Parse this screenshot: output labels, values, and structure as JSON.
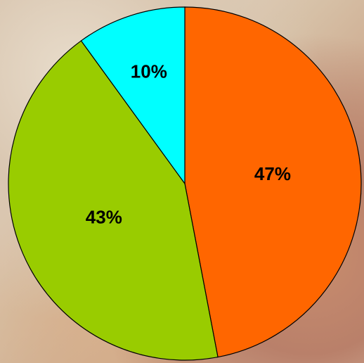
{
  "chart_data": {
    "type": "pie",
    "categories": [
      null,
      null,
      null
    ],
    "values": [
      47,
      43,
      10
    ],
    "value_labels": [
      "47%",
      "43%",
      "10%"
    ],
    "colors": [
      "#ff6600",
      "#99cc00",
      "#00ffff"
    ]
  }
}
